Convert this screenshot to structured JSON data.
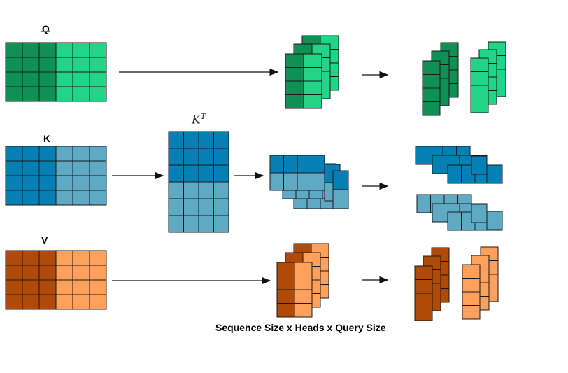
{
  "labels": {
    "q": "Q",
    "k": "K",
    "v": "V",
    "kt_base": "K",
    "kt_sup": "T",
    "caption": "Sequence Size x Heads x Query Size"
  },
  "colors": {
    "q_dark": "#0f9055",
    "q_light": "#22d487",
    "k_dark": "#0680b4",
    "k_light": "#5ea9c4",
    "v_dark": "#b04a08",
    "v_light": "#ffa15c",
    "grid_line": "#1a1a1a",
    "arrow": "#111111"
  },
  "matrices": {
    "rows": 4,
    "cols": 6,
    "dark_cols": 3
  }
}
